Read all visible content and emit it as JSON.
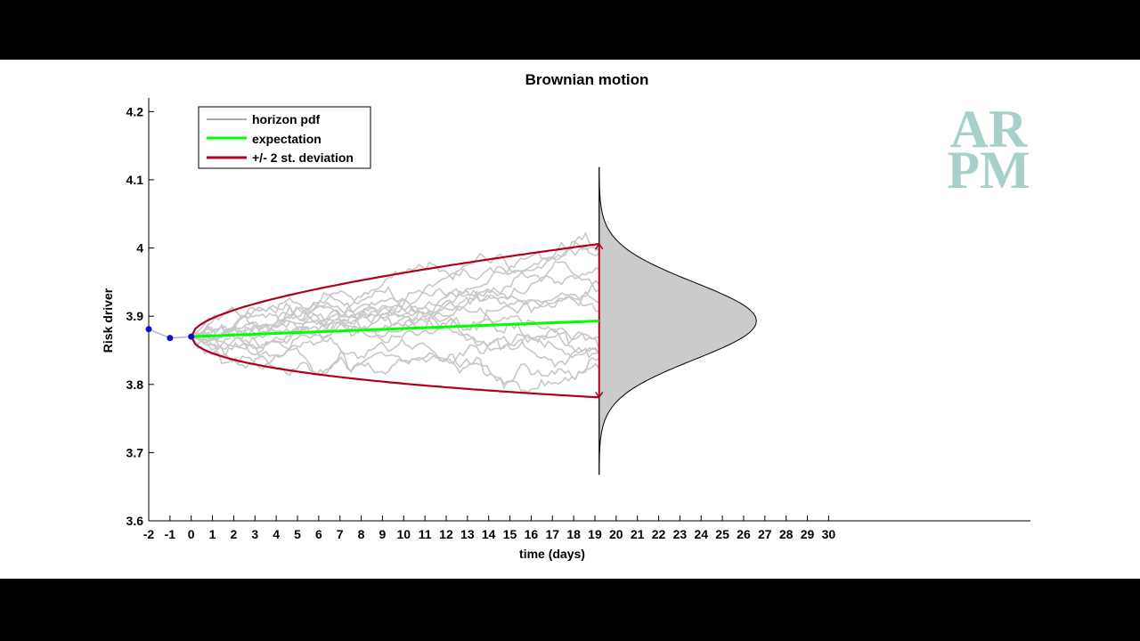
{
  "chart_data": {
    "type": "line",
    "title": "Brownian motion",
    "xlabel": "time (days)",
    "ylabel": "Risk driver",
    "xlim": [
      -2,
      39.5
    ],
    "ylim": [
      3.6,
      4.22
    ],
    "x_ticks": [
      -2,
      -1,
      0,
      1,
      2,
      3,
      4,
      5,
      6,
      7,
      8,
      9,
      10,
      11,
      12,
      13,
      14,
      15,
      16,
      17,
      18,
      19,
      20,
      21,
      22,
      23,
      24,
      25,
      26,
      27,
      28,
      29,
      30
    ],
    "y_ticks": [
      3.6,
      3.7,
      3.8,
      3.9,
      4,
      4.1,
      4.2
    ],
    "grid": false,
    "legend_position": "top-left",
    "history": {
      "x": [
        -2,
        -1,
        0
      ],
      "y": [
        3.881,
        3.868,
        3.87
      ]
    },
    "series": [
      {
        "name": "horizon pdf",
        "color": "#000000",
        "horizon": 19.2,
        "mean": 3.893,
        "std": 0.0565,
        "peak_days": 7.4,
        "y_range": [
          3.668,
          4.118
        ]
      },
      {
        "name": "expectation",
        "color": "#00ff00",
        "x": [
          0,
          19.2
        ],
        "y": [
          3.87,
          3.893
        ]
      },
      {
        "name": "+/- 2 st. deviation",
        "color": "#b00020",
        "x0": 0,
        "x1": 19.2,
        "y0": 3.87,
        "upper_end": 4.006,
        "lower_end": 3.781
      }
    ],
    "simulated_paths": {
      "count": 15,
      "color": "#c8c8c8",
      "steps": 120
    }
  },
  "logo": {
    "line1": "AR",
    "line2": "PM",
    "color": "#a8d0cb"
  }
}
